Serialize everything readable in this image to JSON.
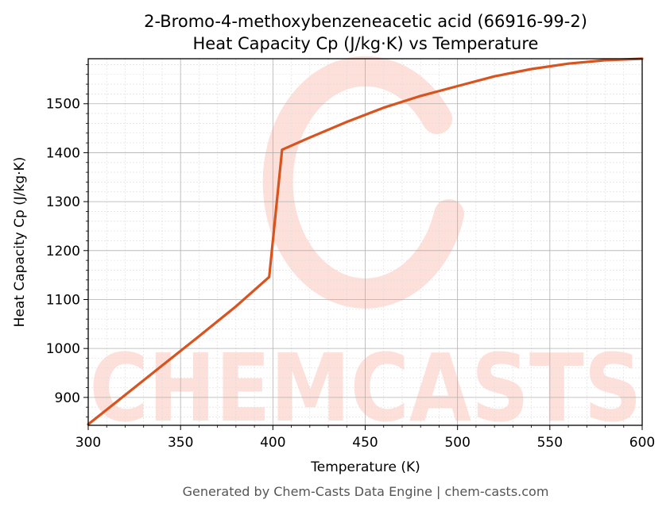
{
  "chart_data": {
    "type": "line",
    "title": "2-Bromo-4-methoxybenzeneacetic acid (66916-99-2)",
    "subtitle": "Heat Capacity Cp (J/kg·K) vs Temperature",
    "xlabel": "Temperature (K)",
    "ylabel": "Heat Capacity Cp (J/kg·K)",
    "xlim": [
      300,
      600
    ],
    "ylim": [
      843,
      1592
    ],
    "x_ticks": [
      300,
      350,
      400,
      450,
      500,
      550,
      600
    ],
    "y_ticks": [
      900,
      1000,
      1100,
      1200,
      1300,
      1400,
      1500
    ],
    "grid": true,
    "legend": "none",
    "series": [
      {
        "color": "#d9531e",
        "x": [
          300,
          320,
          340,
          360,
          380,
          398,
          405,
          420,
          440,
          460,
          480,
          500,
          520,
          540,
          560,
          580,
          600
        ],
        "y": [
          845,
          905,
          965,
          1025,
          1086,
          1146,
          1406,
          1431,
          1463,
          1492,
          1516,
          1536,
          1556,
          1571,
          1582,
          1589,
          1592
        ]
      }
    ]
  },
  "watermark": {
    "text": "CHEMCASTS",
    "color": "#fde0da"
  },
  "footer": "Generated by Chem-Casts Data Engine | chem-casts.com"
}
